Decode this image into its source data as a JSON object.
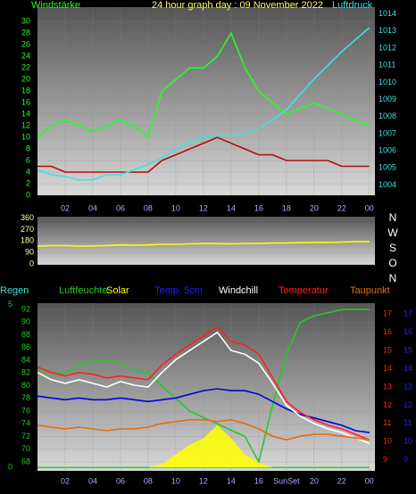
{
  "chart_data": [
    {
      "type": "line",
      "title": "24 hour graph day : 09 November 2022",
      "x": [
        0,
        1,
        2,
        3,
        4,
        5,
        6,
        7,
        8,
        9,
        10,
        11,
        12,
        13,
        14,
        15,
        16,
        17,
        18,
        19,
        20,
        21,
        22,
        23,
        24
      ],
      "xlim": [
        0,
        24.4
      ],
      "xticks": [
        {
          "value": 2,
          "label": "02"
        },
        {
          "value": 4,
          "label": "04"
        },
        {
          "value": 6,
          "label": "06"
        },
        {
          "value": 8,
          "label": "08"
        },
        10,
        12,
        14,
        16,
        18,
        20,
        22,
        {
          "value": 24,
          "label": "00"
        }
      ],
      "ylim": [
        0,
        32.5
      ],
      "yticks": [
        0,
        2,
        4,
        6,
        8,
        10,
        12,
        14,
        16,
        18,
        20,
        22,
        24,
        26,
        28,
        30
      ],
      "y2lim": [
        1003.4,
        1014.4
      ],
      "y2ticks": [
        1004,
        1005,
        1006,
        1007,
        1008,
        1009,
        1010,
        1011,
        1012,
        1013,
        1014
      ],
      "grid": true,
      "series": [
        {
          "name": "Windstärke",
          "color": "#22ff22",
          "values": [
            10,
            12,
            13,
            12,
            11,
            12,
            13,
            12,
            10,
            18,
            20,
            22,
            22,
            24,
            28,
            22,
            18,
            16,
            14,
            15,
            16,
            15,
            14,
            13,
            12
          ]
        },
        {
          "color": "#b01010",
          "values": [
            5,
            5,
            4,
            4,
            4,
            4,
            4,
            4,
            4,
            6,
            7,
            8,
            9,
            10,
            9,
            8,
            7,
            7,
            6,
            6,
            6,
            6,
            5,
            5,
            5
          ]
        },
        {
          "name": "Luftdruck",
          "color": "#40e0e0",
          "axis": "y2",
          "values": [
            1004.9,
            1004.6,
            1004.5,
            1004.3,
            1004.3,
            1004.6,
            1004.6,
            1004.9,
            1005.2,
            1005.6,
            1006.1,
            1006.5,
            1006.8,
            1006.9,
            1006.9,
            1007.0,
            1007.3,
            1007.8,
            1008.4,
            1009.3,
            1010.2,
            1011.0,
            1011.8,
            1012.5,
            1013.2
          ]
        }
      ]
    },
    {
      "type": "line",
      "x": [
        0,
        1,
        2,
        3,
        4,
        5,
        6,
        7,
        8,
        9,
        10,
        11,
        12,
        13,
        14,
        15,
        16,
        17,
        18,
        19,
        20,
        21,
        22,
        23,
        24
      ],
      "xlim": [
        0,
        24.4
      ],
      "ylim": [
        -5,
        370
      ],
      "yticks": [
        0,
        90,
        180,
        270,
        360
      ],
      "y2lim": [
        0,
        360
      ],
      "y2ticks": [
        {
          "value": 360,
          "label": "N"
        },
        {
          "value": 270,
          "label": "W"
        },
        {
          "value": 180,
          "label": "S"
        },
        {
          "value": 90,
          "label": "O"
        },
        {
          "value": 0,
          "label": "N"
        }
      ],
      "grid": true,
      "series": [
        {
          "color": "#ffff00",
          "values": [
            140,
            145,
            145,
            140,
            142,
            145,
            150,
            148,
            150,
            155,
            155,
            158,
            160,
            160,
            158,
            160,
            162,
            165,
            165,
            168,
            170,
            170,
            172,
            175,
            175
          ]
        }
      ]
    },
    {
      "type": "line",
      "x": [
        0,
        1,
        2,
        3,
        4,
        5,
        6,
        7,
        8,
        9,
        10,
        11,
        12,
        13,
        14,
        15,
        16,
        17,
        18,
        19,
        20,
        21,
        22,
        23,
        24
      ],
      "xlim": [
        0,
        24.4
      ],
      "xticks": [
        {
          "value": 2,
          "label": "02"
        },
        {
          "value": 4,
          "label": "04"
        },
        {
          "value": 6,
          "label": "06"
        },
        {
          "value": 8,
          "label": "08"
        },
        10,
        12,
        14,
        16,
        {
          "value": 18,
          "label": "SunSet"
        },
        20,
        22,
        {
          "value": 24,
          "label": "00"
        }
      ],
      "ylim": [
        66.6,
        93
      ],
      "yticks": [
        68,
        70,
        72,
        74,
        76,
        78,
        80,
        82,
        84,
        86,
        88,
        90,
        92
      ],
      "y2lim": [
        8.4,
        17.6
      ],
      "y2ticks": [
        9,
        10,
        11,
        12,
        13,
        14,
        15,
        16,
        17
      ],
      "y3lim": [
        -0.1,
        5.05
      ],
      "y3ticks": [
        0,
        5
      ],
      "y4lim": [
        8.4,
        17.6
      ],
      "y4ticks": [
        9,
        10,
        11,
        12,
        13,
        14,
        15,
        16,
        17
      ],
      "grid": true,
      "series": [
        {
          "name": "Regen",
          "color": "#22cc22",
          "axis": "y3",
          "values": [
            0,
            0,
            0,
            0,
            0,
            0,
            0,
            0,
            0,
            0,
            0,
            0,
            0,
            0,
            0,
            0,
            0,
            0,
            0,
            0,
            0,
            0,
            0,
            0,
            0
          ]
        },
        {
          "name": "Luftfeuchte",
          "color": "#22cc22",
          "values": [
            82.5,
            82,
            82,
            83,
            84,
            84,
            83.5,
            82.5,
            82,
            80,
            78,
            76,
            75,
            74,
            73,
            72,
            68,
            77,
            85,
            90,
            91,
            91.5,
            92,
            92,
            92
          ]
        },
        {
          "name": "Solar",
          "color": "#ffff00",
          "axis": "y3",
          "area": true,
          "values": [
            0,
            0,
            0,
            0,
            0,
            0,
            0,
            0,
            0,
            0.1,
            0.4,
            0.7,
            0.9,
            1.3,
            0.9,
            0.4,
            0.15,
            0,
            0,
            0,
            0,
            0,
            0,
            0,
            0
          ]
        },
        {
          "name": "Temp. 5cm",
          "color": "#0000dd",
          "axis": "y4",
          "values": [
            12.5,
            12.4,
            12.3,
            12.4,
            12.3,
            12.3,
            12.4,
            12.3,
            12.2,
            12.3,
            12.4,
            12.6,
            12.8,
            12.9,
            12.8,
            12.8,
            12.6,
            12.2,
            11.8,
            11.5,
            11.3,
            11.1,
            10.9,
            10.6,
            10.5
          ]
        },
        {
          "name": "Windchill",
          "color": "#ffffff",
          "axis": "y2",
          "values": [
            13.8,
            13.4,
            13.2,
            13.4,
            13.2,
            13.0,
            13.3,
            13.1,
            13.0,
            13.8,
            14.5,
            15.0,
            15.5,
            16.0,
            15.0,
            14.8,
            14.3,
            13.2,
            12.0,
            11.4,
            11.0,
            10.7,
            10.5,
            10.2,
            9.9
          ]
        },
        {
          "name": "Temperatur",
          "color": "#ff2020",
          "axis": "y2",
          "values": [
            14.1,
            13.8,
            13.6,
            13.8,
            13.7,
            13.5,
            13.6,
            13.5,
            13.4,
            14.2,
            14.8,
            15.3,
            15.8,
            16.3,
            15.5,
            15.3,
            14.8,
            13.5,
            12.2,
            11.6,
            11.2,
            10.9,
            10.7,
            10.4,
            10.1
          ]
        },
        {
          "name": "Taupunkt",
          "color": "#e07010",
          "axis": "y2",
          "values": [
            10.9,
            10.8,
            10.7,
            10.8,
            10.7,
            10.6,
            10.7,
            10.7,
            10.8,
            11.0,
            11.1,
            11.2,
            11.2,
            11.1,
            11.2,
            11.0,
            10.7,
            10.3,
            10.1,
            10.3,
            10.4,
            10.4,
            10.3,
            10.2,
            10.1
          ]
        }
      ]
    }
  ]
}
